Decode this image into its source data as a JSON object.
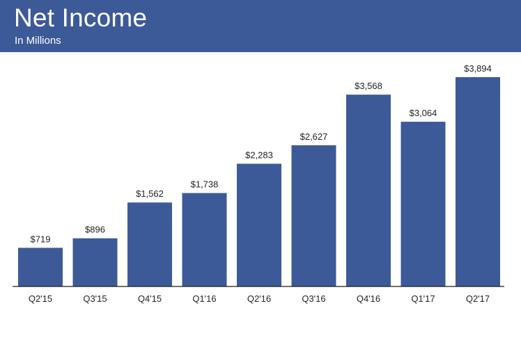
{
  "header": {
    "title": "Net Income",
    "subtitle": "In Millions",
    "bg_color": "#3d5a98"
  },
  "chart_data": {
    "type": "bar",
    "categories": [
      "Q2'15",
      "Q3'15",
      "Q4'15",
      "Q1'16",
      "Q2'16",
      "Q3'16",
      "Q4'16",
      "Q1'17",
      "Q2'17"
    ],
    "values": [
      719,
      896,
      1562,
      1738,
      2283,
      2627,
      3568,
      3064,
      3894
    ],
    "data_labels": [
      "$719",
      "$896",
      "$1,562",
      "$1,738",
      "$2,283",
      "$2,627",
      "$3,568",
      "$3,064",
      "$3,894"
    ],
    "title": "Net Income",
    "subtitle": "In Millions",
    "xlabel": "",
    "ylabel": "",
    "ylim": [
      0,
      4100
    ],
    "grid": false,
    "bar_color": "#3d5a98"
  }
}
